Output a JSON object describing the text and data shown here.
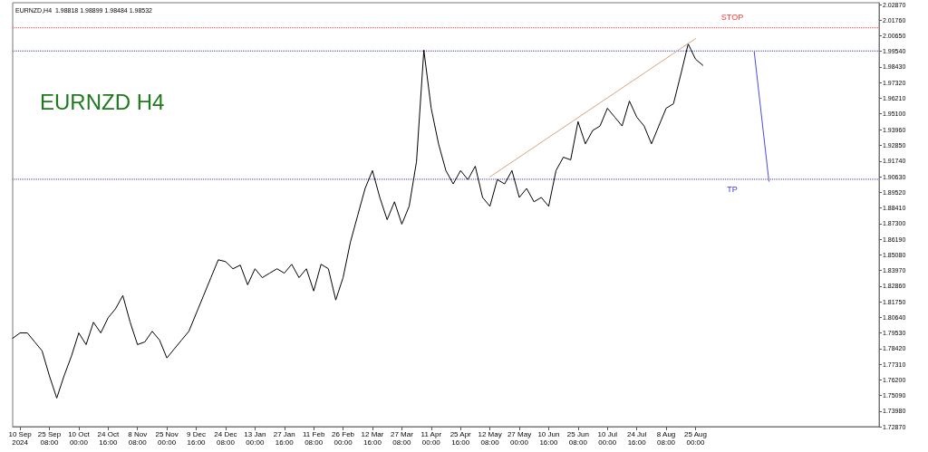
{
  "chart_data": {
    "type": "line",
    "title": "EURNZD,H4  1.98818 1.98899 1.98484 1.98532",
    "annotations": [
      "EURNZD H4"
    ],
    "categories": [
      null,
      "10 Sep 2024",
      null,
      null,
      null,
      "25 Sep 08:00",
      null,
      null,
      null,
      "10 Oct 00:00",
      null,
      null,
      null,
      "24 Oct 16:00",
      null,
      null,
      null,
      "8 Nov 08:00",
      null,
      null,
      null,
      "25 Nov 00:00",
      null,
      null,
      null,
      "9 Dec 16:00",
      null,
      null,
      null,
      "24 Dec 08:00",
      null,
      null,
      null,
      "13 Jan 00:00",
      null,
      null,
      null,
      "27 Jan 16:00",
      null,
      null,
      null,
      "11 Feb 08:00",
      null,
      null,
      null,
      "26 Feb 00:00",
      null,
      null,
      null,
      "12 Mar 16:00",
      null,
      null,
      null,
      "27 Mar 08:00",
      null,
      null,
      null,
      "11 Apr 00:00",
      null,
      null,
      null,
      "25 Apr 16:00",
      null,
      null,
      null,
      "12 May 08:00",
      null,
      null,
      null,
      "27 May 00:00",
      null,
      null,
      null,
      "10 Jun 16:00",
      null,
      null,
      null,
      "25 Jun 08:00",
      null,
      null,
      null,
      "10 Jul 00:00",
      null,
      null,
      null,
      "24 Jul 16:00",
      null,
      null,
      null,
      "8 Aug 08:00",
      null,
      null,
      null,
      "25 Aug 00:00",
      null,
      null,
      null,
      null,
      null,
      null,
      null,
      null,
      null,
      null,
      null,
      null,
      null,
      null,
      null,
      null,
      null,
      null,
      null,
      null,
      null,
      null,
      null,
      null,
      null
    ],
    "series": [
      {
        "color": "#000000",
        "values": [
          1.7915,
          1.7953,
          1.7953,
          1.7889,
          1.7826,
          1.7648,
          1.749,
          1.7648,
          1.7788,
          1.7953,
          1.787,
          1.8029,
          1.7953,
          1.8061,
          1.8124,
          1.8219,
          1.8029,
          1.787,
          1.7889,
          1.7965,
          1.7902,
          1.7775,
          1.7839,
          1.7902,
          1.7965,
          1.8092,
          1.8219,
          1.8346,
          1.8473,
          1.846,
          1.8409,
          1.8435,
          1.8295,
          1.8409,
          1.8346,
          1.8378,
          1.8409,
          1.8378,
          1.8441,
          1.8346,
          1.8409,
          1.8251,
          1.8441,
          1.8409,
          1.8187,
          1.8346,
          1.8599,
          1.879,
          1.898,
          1.9107,
          1.8916,
          1.8758,
          1.8885,
          1.8726,
          1.8853,
          1.917,
          1.9963,
          1.955,
          1.9297,
          1.9107,
          1.9012,
          1.9107,
          1.9043,
          1.9138,
          1.8916,
          1.8853,
          1.9043,
          1.9012,
          1.9107,
          1.8916,
          1.898,
          1.8885,
          1.8916,
          1.8853,
          1.9107,
          1.9202,
          1.9183,
          1.9455,
          1.9297,
          1.9392,
          1.9424,
          1.955,
          1.9487,
          1.9424,
          1.9601,
          1.9487,
          1.9424,
          1.9297,
          1.9424,
          1.955,
          1.9582,
          1.9791,
          2.0007,
          1.9899,
          1.9855,
          null,
          null,
          null,
          null,
          null,
          null,
          null,
          null,
          null,
          null,
          null,
          null,
          null,
          null,
          null,
          null,
          null,
          null,
          null,
          null,
          null,
          null,
          null,
          null
        ]
      },
      {
        "type": "line",
        "color": "#d2a679",
        "values": [
          null,
          null,
          null,
          null,
          null,
          null,
          null,
          null,
          null,
          null,
          null,
          null,
          null,
          null,
          null,
          null,
          null,
          null,
          null,
          null,
          null,
          null,
          null,
          null,
          null,
          null,
          null,
          null,
          null,
          null,
          null,
          null,
          null,
          null,
          null,
          null,
          null,
          null,
          null,
          null,
          null,
          null,
          null,
          null,
          null,
          null,
          null,
          null,
          null,
          null,
          null,
          null,
          null,
          null,
          null,
          null,
          null,
          null,
          null,
          null,
          null,
          null,
          null,
          null,
          null,
          1.9062,
          null,
          null,
          null,
          null,
          null,
          null,
          null,
          null,
          null,
          null,
          null,
          null,
          null,
          null,
          null,
          null,
          null,
          null,
          null,
          null,
          null,
          null,
          null,
          null,
          null,
          null,
          null,
          2.0045,
          null,
          null,
          null,
          null,
          null,
          null,
          null,
          null,
          null,
          null,
          null,
          null,
          null,
          null,
          null,
          null,
          null,
          null,
          null,
          null,
          null,
          null,
          null,
          null,
          null
        ]
      },
      {
        "type": "line",
        "color": "#4a4ae8",
        "values": [
          null,
          null,
          null,
          null,
          null,
          null,
          null,
          null,
          null,
          null,
          null,
          null,
          null,
          null,
          null,
          null,
          null,
          null,
          null,
          null,
          null,
          null,
          null,
          null,
          null,
          null,
          null,
          null,
          null,
          null,
          null,
          null,
          null,
          null,
          null,
          null,
          null,
          null,
          null,
          null,
          null,
          null,
          null,
          null,
          null,
          null,
          null,
          null,
          null,
          null,
          null,
          null,
          null,
          null,
          null,
          null,
          null,
          null,
          null,
          null,
          null,
          null,
          null,
          null,
          null,
          null,
          null,
          null,
          null,
          null,
          null,
          null,
          null,
          null,
          null,
          null,
          null,
          null,
          null,
          null,
          null,
          null,
          null,
          null,
          null,
          null,
          null,
          null,
          null,
          null,
          null,
          null,
          null,
          null,
          null,
          null,
          null,
          null,
          null,
          null,
          null,
          1.995,
          null,
          1.9031,
          null,
          null,
          null,
          null,
          null,
          null,
          null,
          null,
          null,
          null,
          null,
          null,
          null,
          null,
          null
        ]
      }
    ],
    "ylim": [
      1.7287,
      2.03
    ],
    "yticks": [
      {
        "value": 1.7287,
        "label": "1.72870"
      },
      {
        "value": 1.7398,
        "label": "1.73980"
      },
      {
        "value": 1.7509,
        "label": "1.75090"
      },
      {
        "value": 1.762,
        "label": "1.76200"
      },
      {
        "value": 1.7731,
        "label": "1.77310"
      },
      {
        "value": 1.7842,
        "label": "1.78420"
      },
      {
        "value": 1.7953,
        "label": "1.79530"
      },
      {
        "value": 1.8064,
        "label": "1.80640"
      },
      {
        "value": 1.8175,
        "label": "1.81750"
      },
      {
        "value": 1.8286,
        "label": "1.82860"
      },
      {
        "value": 1.8397,
        "label": "1.83970"
      },
      {
        "value": 1.8508,
        "label": "1.85080"
      },
      {
        "value": 1.8619,
        "label": "1.86190"
      },
      {
        "value": 1.873,
        "label": "1.87300"
      },
      {
        "value": 1.8841,
        "label": "1.88410"
      },
      {
        "value": 1.8952,
        "label": "1.89520"
      },
      {
        "value": 1.9063,
        "label": "1.90630"
      },
      {
        "value": 1.9174,
        "label": "1.91740"
      },
      {
        "value": 1.9285,
        "label": "1.92850"
      },
      {
        "value": 1.9396,
        "label": "1.93960"
      },
      {
        "value": 1.951,
        "label": "1.95100"
      },
      {
        "value": 1.9621,
        "label": "1.96210"
      },
      {
        "value": 1.9732,
        "label": "1.97320"
      },
      {
        "value": 1.9843,
        "label": "1.98430"
      },
      {
        "value": 1.9954,
        "label": "1.99540"
      },
      {
        "value": 2.0065,
        "label": "2.00650"
      },
      {
        "value": 2.0176,
        "label": "2.01760"
      },
      {
        "value": 2.0287,
        "label": "2.02870"
      }
    ],
    "ref_lines": [
      {
        "axis": "y",
        "value": 2.0122,
        "label": "STOP",
        "color": "#ff3b3b",
        "line_style": "dotted"
      },
      {
        "axis": "y",
        "value": 1.9957,
        "color": "#3a3ad6",
        "line_style": "dotted"
      },
      {
        "axis": "y",
        "value": 1.9045,
        "label": "TP",
        "color": "#3a3ad6",
        "line_style": "dotted"
      }
    ],
    "grid": false,
    "marker": "none",
    "line_style": "solid"
  }
}
